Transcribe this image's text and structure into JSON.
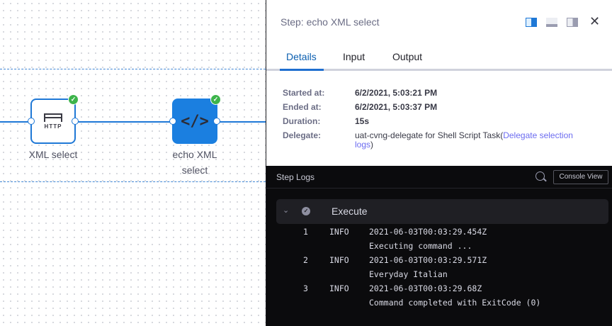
{
  "pipeline": {
    "nodes": [
      {
        "label": "XML select",
        "icon": "http-icon",
        "icon_text": "HTTP",
        "status": "success"
      },
      {
        "label": "echo XML",
        "label2": "select",
        "icon": "code-icon",
        "status": "success"
      }
    ]
  },
  "panel": {
    "title": "Step: echo XML select",
    "tabs": [
      "Details",
      "Input",
      "Output"
    ],
    "active_tab": "Details",
    "details": [
      {
        "k": "Started at:",
        "v": "6/2/2021, 5:03:21 PM"
      },
      {
        "k": "Ended at:",
        "v": "6/2/2021, 5:03:37 PM"
      },
      {
        "k": "Duration:",
        "v": "15s"
      },
      {
        "k": "Delegate:",
        "v": "uat-cvng-delegate for Shell Script Task(",
        "link": "Delegate selection logs",
        "tail": ")"
      }
    ]
  },
  "logs": {
    "title": "Step Logs",
    "console_view": "Console View",
    "section": "Execute",
    "lines": [
      {
        "n": "1",
        "level": "INFO",
        "ts": "2021-06-03T00:03:29.454Z",
        "msg": "Executing command ..."
      },
      {
        "n": "2",
        "level": "INFO",
        "ts": "2021-06-03T00:03:29.571Z",
        "msg": "Everyday Italian"
      },
      {
        "n": "3",
        "level": "INFO",
        "ts": "2021-06-03T00:03:29.68Z",
        "msg": "Command completed with ExitCode (0)"
      }
    ]
  },
  "colors": {
    "accent": "#1f78d6",
    "success": "#3db44b",
    "link": "#6c6cf0",
    "log_bg": "#0b0b0d"
  }
}
